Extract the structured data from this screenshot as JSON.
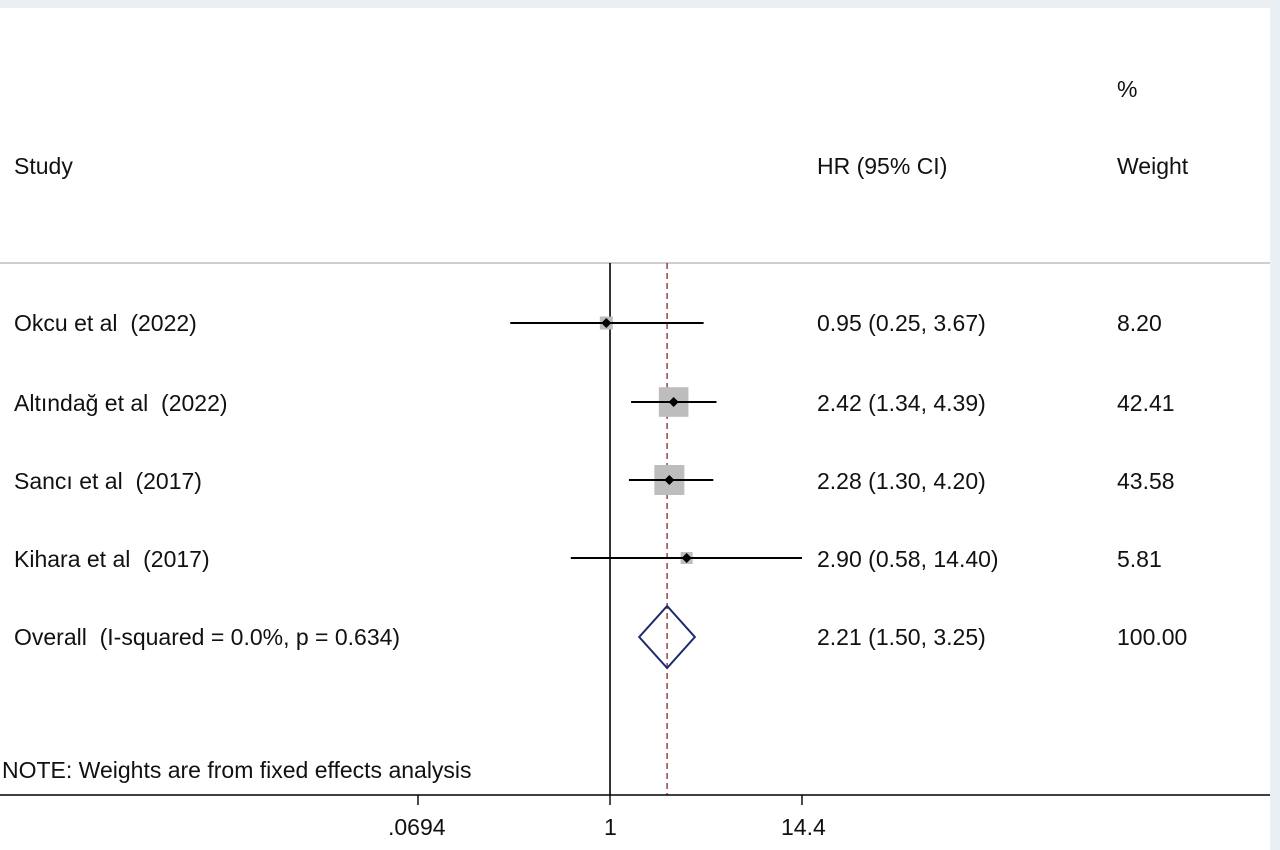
{
  "chart_data": {
    "type": "forest",
    "columns": {
      "study": "Study",
      "effect": "HR (95% CI)",
      "weight_top": "%",
      "weight": "Weight"
    },
    "studies": [
      {
        "label": "Okcu et al  (2022)",
        "hr": 0.95,
        "lower": 0.25,
        "upper": 3.67,
        "ci_text": "0.95 (0.25, 3.67)",
        "weight": 8.2,
        "weight_text": "8.20"
      },
      {
        "label": "Altındağ et al  (2022)",
        "hr": 2.42,
        "lower": 1.34,
        "upper": 4.39,
        "ci_text": "2.42 (1.34, 4.39)",
        "weight": 42.41,
        "weight_text": "42.41"
      },
      {
        "label": "Sancı et al  (2017)",
        "hr": 2.28,
        "lower": 1.3,
        "upper": 4.2,
        "ci_text": "2.28 (1.30, 4.20)",
        "weight": 43.58,
        "weight_text": "43.58"
      },
      {
        "label": "Kihara et al  (2017)",
        "hr": 2.9,
        "lower": 0.58,
        "upper": 14.4,
        "ci_text": "2.90 (0.58, 14.40)",
        "weight": 5.81,
        "weight_text": "5.81"
      }
    ],
    "overall": {
      "label": "Overall  (I-squared = 0.0%, p = 0.634)",
      "hr": 2.21,
      "lower": 1.5,
      "upper": 3.25,
      "ci_text": "2.21 (1.50, 3.25)",
      "weight_text": "100.00"
    },
    "note": "NOTE: Weights are from fixed effects analysis",
    "x_scale": "log",
    "x_range": [
      0.0694,
      14.4
    ],
    "x_ticks": [
      {
        "value": 0.0694,
        "label": ".0694"
      },
      {
        "value": 1,
        "label": "1"
      },
      {
        "value": 14.4,
        "label": "14.4"
      }
    ],
    "null_line": 1,
    "colors": {
      "ci_line": "#000000",
      "weight_box": "#bdbdbd",
      "point": "#000000",
      "overall_diamond": "#1f2a6b",
      "overall_line": "#8b3a3a",
      "divider": "#bdbdbd",
      "axis": "#000000"
    }
  }
}
